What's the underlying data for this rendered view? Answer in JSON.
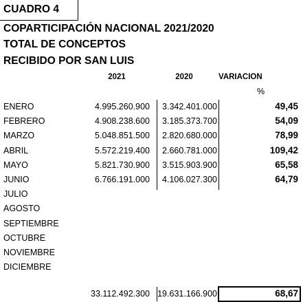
{
  "header": {
    "box": "CUADRO 4",
    "title": "COPARTICIPACIÓN  NACIONAL 2021/2020",
    "subtitle": "TOTAL  DE CONCEPTOS",
    "subtitle2": "RECIBIDO POR SAN LUIS"
  },
  "table": {
    "columns": [
      "2021",
      "2020",
      "VARIACION"
    ],
    "unit": "%",
    "rows": [
      [
        "ENERO",
        "4.995.260.900",
        "3.342.401.000",
        "49,45"
      ],
      [
        "FEBRERO",
        "4.908.238.600",
        "3.185.373.700",
        "54,09"
      ],
      [
        "MARZO",
        "5.048.851.500",
        "2.820.680.000",
        "78,99"
      ],
      [
        "ABRIL",
        "5.572.219.400",
        "2.660.781.000",
        "109,42"
      ],
      [
        "MAYO",
        "5.821.730.900",
        "3.515.903.900",
        "65,58"
      ],
      [
        "JUNIO",
        "6.766.191.000",
        "4.106.027.300",
        "64,79"
      ],
      [
        "JULIO"
      ],
      [
        "AGOSTO"
      ],
      [
        "SEPTIEMBRE"
      ],
      [
        "OCTUBRE"
      ],
      [
        "NOVIEMBRE"
      ],
      [
        "DICIEMBRE"
      ]
    ],
    "total": [
      "33.112.492.300",
      "19.631.166.900",
      "68,67"
    ]
  }
}
